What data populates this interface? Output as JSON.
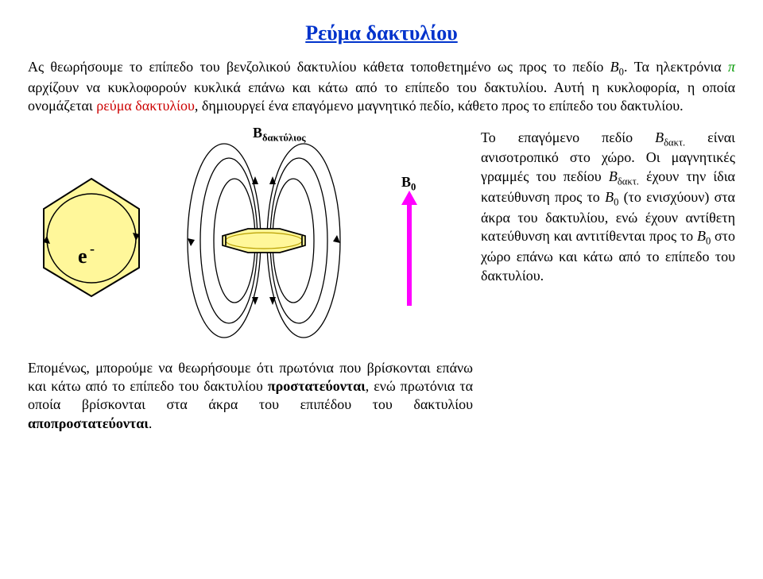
{
  "title": {
    "text": "Ρεύμα δακτυλίου",
    "color": "#0033cc",
    "font_size": 26
  },
  "intro": {
    "t1": "Ας θεωρήσουμε το επίπεδο του βενζολικού δακτυλίου κάθετα τοποθετημένο ως προς το πεδίο ",
    "b0_1": "B",
    "b0_1sub": "0",
    "t2": ". Τα ηλεκτρόνια ",
    "pi": "π",
    "t3": " αρχίζουν να κυκλοφορούν κυκλικά επάνω και κάτω από το επίπεδο του δακτυλίου. Αυτή η κυκλοφορία, η οποία ονομάζεται ",
    "ring_current": "ρεύμα δακτυλίου",
    "t4": ", δημιουργεί ένα επαγόμενο μαγνητικό πεδίο, κάθετο προς το επίπεδο του δακτυλίου.",
    "ring_color": "#cc0000",
    "pi_color": "#009900"
  },
  "diagram": {
    "b_ring_label": "B",
    "b_ring_sub": "δακτύλιος",
    "b0_label": "B",
    "b0_sub": "0",
    "e_label": "e",
    "e_sup": "-",
    "hexagon_fill": "#fff79a",
    "hexagon_fill_dark": "#b8a000",
    "hexagon_stroke": "#000000",
    "circle_stroke": "#000000",
    "dipole_stroke": "#000000",
    "arrow_color": "#ff00ff",
    "label_font_size": 20
  },
  "right_text": {
    "t1": "Το επαγόμενο πεδίο ",
    "b_dakt1": "B",
    "b_dakt1_sub": "δακτ.",
    "t2": " είναι ανισοτροπικό στο χώρο. Οι μαγνητικές γραμμές του πεδίου ",
    "b_dakt2": "B",
    "b_dakt2_sub": "δακτ.",
    "t3": " έχουν την ίδια κατεύθυνση προς το ",
    "b0_2": "B",
    "b0_2sub": "0",
    "t4": " (το ενισχύουν) στα άκρα του  δακτυλίου, ενώ έχουν αντίθετη κατεύθυνση και αντιτίθενται προς το ",
    "b0_3": "B",
    "b0_3sub": "0",
    "t5": " στο χώρο επάνω και κάτω από το επίπεδο του δακτυλίου.",
    "italic_color": "#000000"
  },
  "bottom_text": {
    "t1": "Επομένως, μπορούμε να θεωρήσουμε ότι πρωτόνια που βρίσκονται επάνω και κάτω από το επίπεδο του δακτυλίου προστατεύονται, ενώ πρωτόνια τα οποία βρίσκονται στα άκρα του επιπέδου του δακτυλίου αποπροστατεύονται.",
    "bold_parts": [
      "προστατεύονται",
      "αποπροστατεύονται"
    ]
  }
}
